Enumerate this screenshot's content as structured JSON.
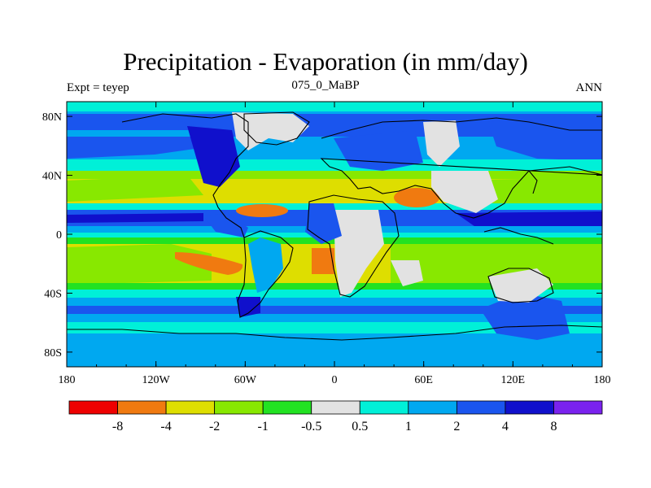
{
  "title": "Precipitation - Evaporation (in mm/day)",
  "subtitle_left": "Expt = teyep",
  "subtitle_center": "075_0_MaBP",
  "subtitle_right": "ANN",
  "colors": {
    "c_lt_m8": "#ee0000",
    "c_m8_m4": "#f07a10",
    "c_m4_m2": "#dede00",
    "c_m2_m1": "#88e800",
    "c_m1_m05": "#22e222",
    "c_m05_05": "#e2e2e2",
    "c_05_1": "#00f0d8",
    "c_1_2": "#00a8f0",
    "c_2_4": "#1a55ee",
    "c_4_8": "#1010cc",
    "c_gt_8": "#7a22ee",
    "coast": "#000000"
  },
  "chart_data": {
    "type": "heatmap",
    "title": "Precipitation - Evaporation (in mm/day)",
    "x_ticks": [
      "180",
      "120W",
      "60W",
      "0",
      "60E",
      "120E",
      "180"
    ],
    "y_ticks": [
      "80N",
      "40N",
      "0",
      "40S",
      "80S"
    ],
    "xlim": [
      -180,
      180
    ],
    "ylim": [
      -90,
      90
    ],
    "colorbar": {
      "labels": [
        "-8",
        "-4",
        "-2",
        "-1",
        "-0.5",
        "0.5",
        "1",
        "2",
        "4",
        "8"
      ],
      "levels": [
        -8,
        -4,
        -2,
        -1,
        -0.5,
        0.5,
        1,
        2,
        4,
        8
      ]
    }
  }
}
